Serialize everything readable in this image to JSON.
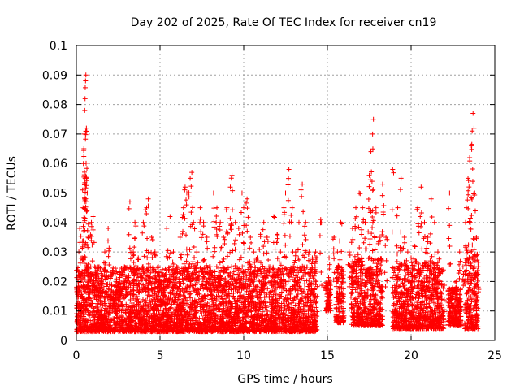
{
  "chart_data": {
    "type": "scatter",
    "title": "Day 202 of 2025, Rate Of TEC Index for receiver cn19",
    "xlabel": "GPS time / hours",
    "ylabel": "ROTI / TECUs",
    "xlim": [
      0,
      25
    ],
    "ylim": [
      0,
      0.1
    ],
    "x_ticks": [
      0,
      5,
      10,
      15,
      20,
      25
    ],
    "x_tick_labels": [
      "0",
      "5",
      "10",
      "15",
      "20",
      "25"
    ],
    "y_ticks": [
      0,
      0.01,
      0.02,
      0.03,
      0.04,
      0.05,
      0.06,
      0.07,
      0.08,
      0.09,
      0.1
    ],
    "y_tick_labels": [
      "0",
      "0.01",
      "0.02",
      "0.03",
      "0.04",
      "0.05",
      "0.06",
      "0.07",
      "0.08",
      "0.09",
      "0.1"
    ],
    "grid": true,
    "marker": "+",
    "color": "#ff0000",
    "series": [
      {
        "name": "ROTI",
        "points": [
          [
            0.05,
            0.012
          ],
          [
            0.1,
            0.018
          ],
          [
            0.15,
            0.03
          ],
          [
            0.2,
            0.038
          ],
          [
            0.25,
            0.022
          ],
          [
            0.3,
            0.015
          ],
          [
            0.35,
            0.028
          ],
          [
            0.4,
            0.045
          ],
          [
            0.42,
            0.06
          ],
          [
            0.45,
            0.065
          ],
          [
            0.47,
            0.07
          ],
          [
            0.5,
            0.078
          ],
          [
            0.52,
            0.082
          ],
          [
            0.55,
            0.088
          ],
          [
            0.57,
            0.09
          ],
          [
            0.6,
            0.072
          ],
          [
            0.62,
            0.055
          ],
          [
            0.65,
            0.05
          ],
          [
            0.7,
            0.035
          ],
          [
            0.75,
            0.02
          ],
          [
            0.8,
            0.012
          ],
          [
            0.9,
            0.04
          ],
          [
            1.0,
            0.042
          ],
          [
            1.1,
            0.025
          ],
          [
            1.2,
            0.018
          ],
          [
            1.3,
            0.01
          ],
          [
            1.4,
            0.008
          ],
          [
            1.5,
            0.02
          ],
          [
            1.7,
            0.03
          ],
          [
            1.9,
            0.038
          ],
          [
            2.0,
            0.015
          ],
          [
            2.2,
            0.012
          ],
          [
            2.4,
            0.02
          ],
          [
            2.6,
            0.016
          ],
          [
            2.8,
            0.025
          ],
          [
            3.0,
            0.018
          ],
          [
            3.2,
            0.047
          ],
          [
            3.4,
            0.03
          ],
          [
            3.5,
            0.04
          ],
          [
            3.7,
            0.028
          ],
          [
            3.9,
            0.022
          ],
          [
            4.0,
            0.04
          ],
          [
            4.2,
            0.045
          ],
          [
            4.3,
            0.048
          ],
          [
            4.5,
            0.035
          ],
          [
            4.7,
            0.03
          ],
          [
            4.9,
            0.025
          ],
          [
            5.0,
            0.02
          ],
          [
            5.2,
            0.018
          ],
          [
            5.4,
            0.038
          ],
          [
            5.6,
            0.042
          ],
          [
            5.8,
            0.03
          ],
          [
            6.0,
            0.025
          ],
          [
            6.2,
            0.035
          ],
          [
            6.4,
            0.045
          ],
          [
            6.5,
            0.052
          ],
          [
            6.6,
            0.05
          ],
          [
            6.8,
            0.055
          ],
          [
            6.9,
            0.057
          ],
          [
            7.0,
            0.04
          ],
          [
            7.2,
            0.03
          ],
          [
            7.4,
            0.045
          ],
          [
            7.6,
            0.04
          ],
          [
            7.8,
            0.035
          ],
          [
            8.0,
            0.025
          ],
          [
            8.2,
            0.05
          ],
          [
            8.4,
            0.045
          ],
          [
            8.6,
            0.04
          ],
          [
            8.8,
            0.035
          ],
          [
            9.0,
            0.045
          ],
          [
            9.2,
            0.052
          ],
          [
            9.3,
            0.056
          ],
          [
            9.5,
            0.04
          ],
          [
            9.7,
            0.038
          ],
          [
            9.9,
            0.05
          ],
          [
            10.0,
            0.045
          ],
          [
            10.2,
            0.048
          ],
          [
            10.4,
            0.035
          ],
          [
            10.6,
            0.03
          ],
          [
            10.8,
            0.028
          ],
          [
            11.0,
            0.036
          ],
          [
            11.2,
            0.04
          ],
          [
            11.4,
            0.035
          ],
          [
            11.6,
            0.025
          ],
          [
            11.8,
            0.042
          ],
          [
            12.0,
            0.036
          ],
          [
            12.2,
            0.03
          ],
          [
            12.4,
            0.045
          ],
          [
            12.5,
            0.05
          ],
          [
            12.7,
            0.058
          ],
          [
            12.9,
            0.045
          ],
          [
            13.1,
            0.03
          ],
          [
            13.3,
            0.04
          ],
          [
            13.5,
            0.053
          ],
          [
            13.7,
            0.04
          ],
          [
            13.9,
            0.03
          ],
          [
            14.1,
            0.028
          ],
          [
            14.3,
            0.03
          ],
          [
            14.6,
            0.041
          ],
          [
            15.1,
            0.028
          ],
          [
            15.4,
            0.035
          ],
          [
            15.6,
            0.03
          ],
          [
            15.8,
            0.04
          ],
          [
            16.3,
            0.03
          ],
          [
            16.5,
            0.038
          ],
          [
            16.7,
            0.045
          ],
          [
            16.9,
            0.05
          ],
          [
            17.1,
            0.045
          ],
          [
            17.3,
            0.04
          ],
          [
            17.5,
            0.056
          ],
          [
            17.6,
            0.064
          ],
          [
            17.7,
            0.07
          ],
          [
            17.75,
            0.075
          ],
          [
            17.9,
            0.045
          ],
          [
            18.1,
            0.035
          ],
          [
            18.3,
            0.053
          ],
          [
            18.5,
            0.035
          ],
          [
            18.9,
            0.058
          ],
          [
            19.2,
            0.045
          ],
          [
            19.4,
            0.055
          ],
          [
            19.6,
            0.035
          ],
          [
            19.8,
            0.03
          ],
          [
            20.0,
            0.028
          ],
          [
            20.2,
            0.032
          ],
          [
            20.4,
            0.045
          ],
          [
            20.6,
            0.052
          ],
          [
            20.8,
            0.04
          ],
          [
            21.0,
            0.035
          ],
          [
            21.2,
            0.048
          ],
          [
            21.4,
            0.04
          ],
          [
            21.6,
            0.03
          ],
          [
            22.3,
            0.05
          ],
          [
            22.5,
            0.018
          ],
          [
            22.7,
            0.02
          ],
          [
            22.9,
            0.03
          ],
          [
            23.1,
            0.025
          ],
          [
            23.3,
            0.045
          ],
          [
            23.4,
            0.055
          ],
          [
            23.5,
            0.062
          ],
          [
            23.6,
            0.066
          ],
          [
            23.65,
            0.071
          ],
          [
            23.7,
            0.077
          ],
          [
            23.8,
            0.05
          ],
          [
            23.9,
            0.035
          ],
          [
            24.0,
            0.025
          ]
        ]
      }
    ],
    "dense_band_segments": [
      {
        "x_start": 0.0,
        "x_end": 14.4,
        "y_low": 0.003,
        "y_high": 0.025
      },
      {
        "x_start": 14.9,
        "x_end": 15.2,
        "y_low": 0.01,
        "y_high": 0.02
      },
      {
        "x_start": 15.5,
        "x_end": 16.0,
        "y_low": 0.006,
        "y_high": 0.025
      },
      {
        "x_start": 16.4,
        "x_end": 18.3,
        "y_low": 0.005,
        "y_high": 0.028
      },
      {
        "x_start": 18.9,
        "x_end": 22.0,
        "y_low": 0.004,
        "y_high": 0.027
      },
      {
        "x_start": 22.2,
        "x_end": 23.0,
        "y_low": 0.005,
        "y_high": 0.018
      },
      {
        "x_start": 23.2,
        "x_end": 24.0,
        "y_low": 0.004,
        "y_high": 0.03
      }
    ]
  }
}
